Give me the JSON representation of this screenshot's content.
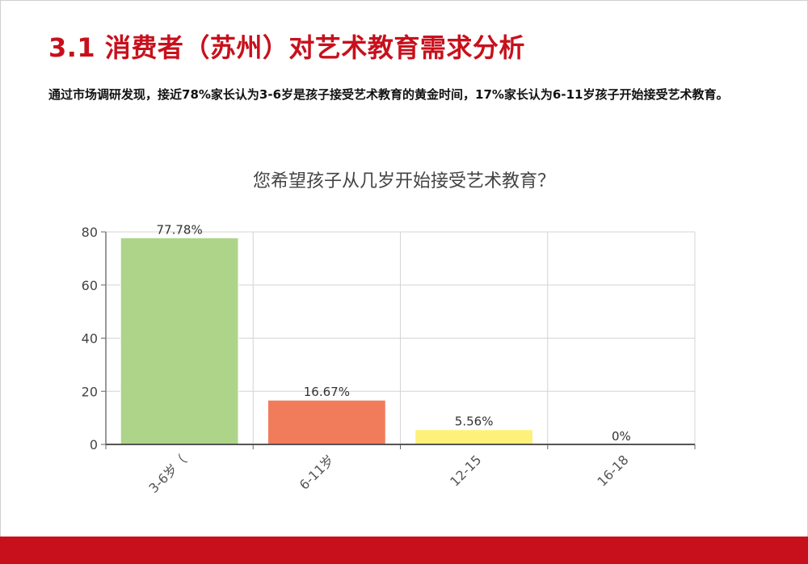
{
  "slide": {
    "title": "3.1 消费者（苏州）对艺术教育需求分析",
    "body": "通过市场调研发现，接近78%家长认为3-6岁是孩子接受艺术教育的黄金时间，17%家长认为6-11岁孩子开始接受艺术教育。"
  },
  "colors": {
    "accent": "#c8101c"
  },
  "chart_data": {
    "type": "bar",
    "title": "您希望孩子从几岁开始接受艺术教育？",
    "categories": [
      "3-6岁（",
      "6-11岁",
      "12-15",
      "16-18"
    ],
    "values": [
      77.78,
      16.67,
      5.56,
      0
    ],
    "data_labels": [
      "77.78%",
      "16.67%",
      "5.56%",
      "0%"
    ],
    "colors": [
      "#aed48a",
      "#f07c5c",
      "#fef07a",
      "#aed48a"
    ],
    "ylim": [
      0,
      80
    ],
    "yticks": [
      0,
      20,
      40,
      60,
      80
    ],
    "grid": true,
    "xlabel": "",
    "ylabel": ""
  }
}
